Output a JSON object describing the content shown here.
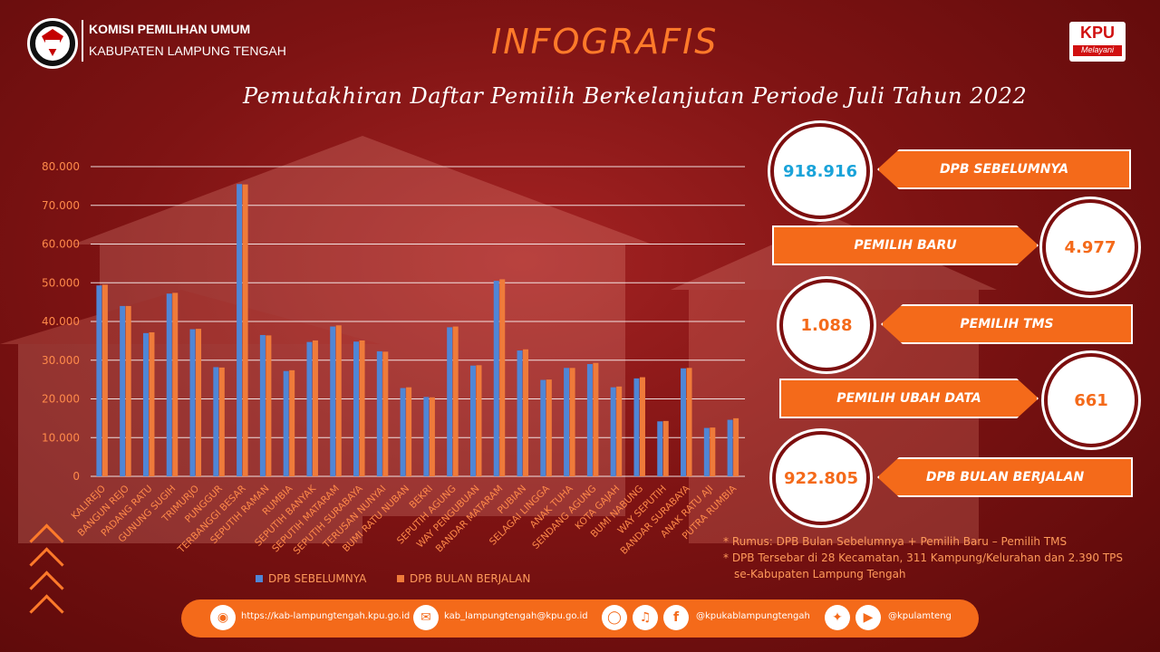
{
  "header": {
    "org_name": "KOMISI PEMILIHAN UMUM",
    "org_region": "KABUPATEN LAMPUNG TENGAH",
    "logo_caption": "KPU",
    "badge_top": "KPU",
    "badge_bottom": "Melayani"
  },
  "title": "INFOGRAFIS",
  "subtitle": "Pemutakhiran Daftar Pemilih Berkelanjutan Periode Juli Tahun 2022",
  "stats": [
    {
      "value": "918.916",
      "label": "DPB SEBELUMNYA",
      "color": "#1aa3d9"
    },
    {
      "value": "4.977",
      "label": "PEMILIH BARU",
      "color": "#f46a1a"
    },
    {
      "value": "1.088",
      "label": "PEMILIH TMS",
      "color": "#f46a1a"
    },
    {
      "value": "661",
      "label": "PEMILIH UBAH DATA",
      "color": "#f46a1a"
    },
    {
      "value": "922.805",
      "label": "DPB BULAN BERJALAN",
      "color": "#f46a1a"
    }
  ],
  "notes": [
    "* Rumus: DPB Bulan Sebelumnya + Pemilih Baru – Pemilih TMS",
    "* DPB Tersebar di 28 Kecamatan, 311 Kampung/Kelurahan dan 2.390 TPS",
    "se-Kabupaten Lampung Tengah"
  ],
  "footer": {
    "website": "https://kab-lampungtengah.kpu.go.id",
    "email": "kab_lampungtengah@kpu.go.id",
    "social": "@kpukablampungtengah",
    "twitter": "@kpulamteng",
    "icons": [
      "globe-icon",
      "mail-icon",
      "instagram-icon",
      "tiktok-icon",
      "facebook-icon",
      "twitter-icon",
      "youtube-icon"
    ]
  },
  "colors": {
    "series1": "#4f86d6",
    "series2": "#ef7b3a",
    "accent": "#f46a1a"
  },
  "chart_data": {
    "type": "bar",
    "categories": [
      "KALIREJO",
      "BANGUN REJO",
      "PADANG RATU",
      "GUNUNG SUGIH",
      "TRIMURJO",
      "PUNGGUR",
      "TERBANGGI BESAR",
      "SEPUTIH RAMAN",
      "RUMBIA",
      "SEPUTIH BANYAK",
      "SEPUTIH MATARAM",
      "SEPUTIH SURABAYA",
      "TERUSAN NUNYAI",
      "BUMI RATU NUBAN",
      "BEKRI",
      "SEPUTIH AGUNG",
      "WAY PENGUBUAN",
      "BANDAR MATARAM",
      "PUBIAN",
      "SELAGAI LINGGA",
      "ANAK TUHA",
      "SENDANG AGUNG",
      "KOTA GAJAH",
      "BUMI NABUNG",
      "WAY SEPUTIH",
      "BANDAR SURABAYA",
      "ANAK RATU AJI",
      "PUTRA RUMBIA"
    ],
    "series": [
      {
        "name": "DPB SEBELUMNYA",
        "values": [
          49300,
          44000,
          37000,
          47200,
          38000,
          28200,
          75500,
          36500,
          27200,
          34700,
          38700,
          34800,
          32300,
          22800,
          20500,
          38500,
          28600,
          50500,
          32500,
          24900,
          28000,
          29000,
          23000,
          25300,
          14200,
          27900,
          12500,
          14600
        ]
      },
      {
        "name": "DPB BULAN BERJALAN",
        "values": [
          49500,
          44000,
          37200,
          47400,
          38100,
          28100,
          75400,
          36400,
          27400,
          35100,
          39000,
          35100,
          32200,
          23000,
          20400,
          38700,
          28700,
          50900,
          32800,
          25000,
          28000,
          29300,
          23200,
          25600,
          14300,
          28000,
          12600,
          15000
        ]
      }
    ],
    "yticks": [
      "80.000",
      "70.000",
      "60.000",
      "50.000",
      "40.000",
      "30.000",
      "20.000",
      "10.000",
      "0"
    ],
    "ylim": [
      0,
      80000
    ],
    "grid": true,
    "legend_position": "bottom"
  }
}
